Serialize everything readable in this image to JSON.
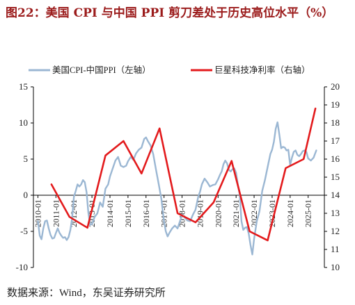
{
  "page": {
    "title": "图22：美国 CPI 与中国 PPI 剪刀差处于历史高位水平（%）",
    "source": "数据来源：Wind，东吴证券研究所"
  },
  "colors": {
    "title": "#9b1b1b",
    "cpi_ppi_line": "#9bb7d3",
    "prosperity_line": "#e31a1c",
    "axis": "#000000"
  },
  "chart_data": {
    "type": "line",
    "legend_placement": "top",
    "grid": false,
    "left_axis": {
      "ylim": [
        -10,
        15
      ],
      "ticks": [
        -10,
        -5,
        0,
        5,
        10,
        15
      ]
    },
    "right_axis": {
      "ylim": [
        10,
        20
      ],
      "ticks": [
        10,
        11,
        12,
        13,
        14,
        15,
        16,
        17,
        18,
        19,
        20
      ]
    },
    "x_ticks": [
      "2010-01",
      "2011-01",
      "2012-01",
      "2013-01",
      "2014-01",
      "2015-01",
      "2016-01",
      "2017-01",
      "2018-01",
      "2019-01",
      "2020-01",
      "2021-01",
      "2022-01",
      "2023-01",
      "2024-01",
      "2025-01"
    ],
    "x_range": [
      2009.75,
      2025.9
    ],
    "series": [
      {
        "name": "美国CPI-中国PPI（左轴）",
        "axis": "left",
        "x": [
          2010.0,
          2010.1,
          2010.2,
          2010.3,
          2010.4,
          2010.5,
          2010.6,
          2010.7,
          2010.8,
          2010.9,
          2011.0,
          2011.1,
          2011.2,
          2011.3,
          2011.4,
          2011.5,
          2011.6,
          2011.7,
          2011.8,
          2011.9,
          2012.0,
          2012.1,
          2012.2,
          2012.3,
          2012.4,
          2012.5,
          2012.6,
          2012.7,
          2012.8,
          2012.9,
          2013.0,
          2013.15,
          2013.3,
          2013.45,
          2013.6,
          2013.75,
          2013.9,
          2014.0,
          2014.15,
          2014.3,
          2014.45,
          2014.6,
          2014.75,
          2014.9,
          2015.0,
          2015.15,
          2015.3,
          2015.45,
          2015.6,
          2015.75,
          2015.9,
          2016.0,
          2016.1,
          2016.25,
          2016.4,
          2016.55,
          2016.7,
          2016.85,
          2017.0,
          2017.1,
          2017.2,
          2017.3,
          2017.45,
          2017.6,
          2017.75,
          2017.9,
          2018.0,
          2018.15,
          2018.3,
          2018.45,
          2018.6,
          2018.75,
          2018.9,
          2019.0,
          2019.1,
          2019.25,
          2019.4,
          2019.55,
          2019.7,
          2019.85,
          2020.0,
          2020.1,
          2020.2,
          2020.3,
          2020.4,
          2020.5,
          2020.6,
          2020.7,
          2020.8,
          2020.9,
          2021.0,
          2021.1,
          2021.2,
          2021.3,
          2021.4,
          2021.5,
          2021.6,
          2021.7,
          2021.8,
          2021.9,
          2022.0,
          2022.15,
          2022.3,
          2022.45,
          2022.6,
          2022.75,
          2022.9,
          2023.0,
          2023.1,
          2023.2,
          2023.3,
          2023.4,
          2023.5,
          2023.6,
          2023.7,
          2023.8,
          2023.9,
          2024.0,
          2024.1,
          2024.2,
          2024.3,
          2024.4,
          2024.5,
          2024.6,
          2024.7,
          2024.8,
          2024.9,
          2025.0,
          2025.15,
          2025.3,
          2025.45
        ],
        "values": [
          -3.6,
          -5.6,
          -6.1,
          -4.6,
          -3.6,
          -3.5,
          -4.6,
          -5.5,
          -6.0,
          -5.9,
          -5.2,
          -4.6,
          -5.2,
          -5.6,
          -5.9,
          -5.8,
          -6.2,
          -5.8,
          -4.8,
          -3.2,
          -0.2,
          0.6,
          1.5,
          1.2,
          1.5,
          2.1,
          1.8,
          0.4,
          -2.4,
          -4.1,
          -4.0,
          -3.0,
          -2.5,
          -1.0,
          -1.6,
          0.9,
          1.5,
          2.6,
          3.7,
          4.8,
          5.3,
          4.1,
          3.9,
          4.1,
          4.7,
          5.3,
          4.9,
          5.8,
          6.3,
          6.6,
          7.8,
          8.0,
          7.5,
          6.9,
          5.7,
          3.6,
          1.6,
          -0.5,
          -3.6,
          -5.0,
          -5.7,
          -5.2,
          -4.6,
          -4.2,
          -4.6,
          -3.5,
          -2.7,
          -3.1,
          -3.5,
          -3.6,
          -2.7,
          -2.0,
          -0.2,
          0.5,
          1.5,
          2.3,
          1.8,
          1.2,
          1.4,
          1.5,
          2.2,
          2.8,
          3.3,
          4.3,
          4.8,
          4.4,
          3.5,
          3.3,
          3.6,
          3.7,
          3.1,
          1.4,
          0.1,
          -3.6,
          -4.8,
          -4.5,
          -4.4,
          -5.3,
          -6.9,
          -8.2,
          -6.0,
          -3.6,
          -2.2,
          0.6,
          2.1,
          3.9,
          5.7,
          6.3,
          7.4,
          9.2,
          10.1,
          8.4,
          6.5,
          6.7,
          6.6,
          6.2,
          6.3,
          4.2,
          5.2,
          6.0,
          6.2,
          5.6,
          5.4,
          5.7,
          6.1,
          6.2,
          6.0,
          5.1,
          4.8,
          5.2,
          6.2
        ]
      },
      {
        "name": "巨星科技净利率（右轴）",
        "axis": "right",
        "x": [
          2010.75,
          2011.75,
          2012.75,
          2013.75,
          2014.75,
          2015.75,
          2016.75,
          2017.75,
          2018.75,
          2019.75,
          2020.75,
          2021.75,
          2022.75,
          2023.75,
          2024.75,
          2025.4
        ],
        "values": [
          14.6,
          12.8,
          12.2,
          16.2,
          17.0,
          15.2,
          17.7,
          13.0,
          12.5,
          13.6,
          15.9,
          12.0,
          11.5,
          15.5,
          16.0,
          18.8
        ]
      }
    ]
  }
}
